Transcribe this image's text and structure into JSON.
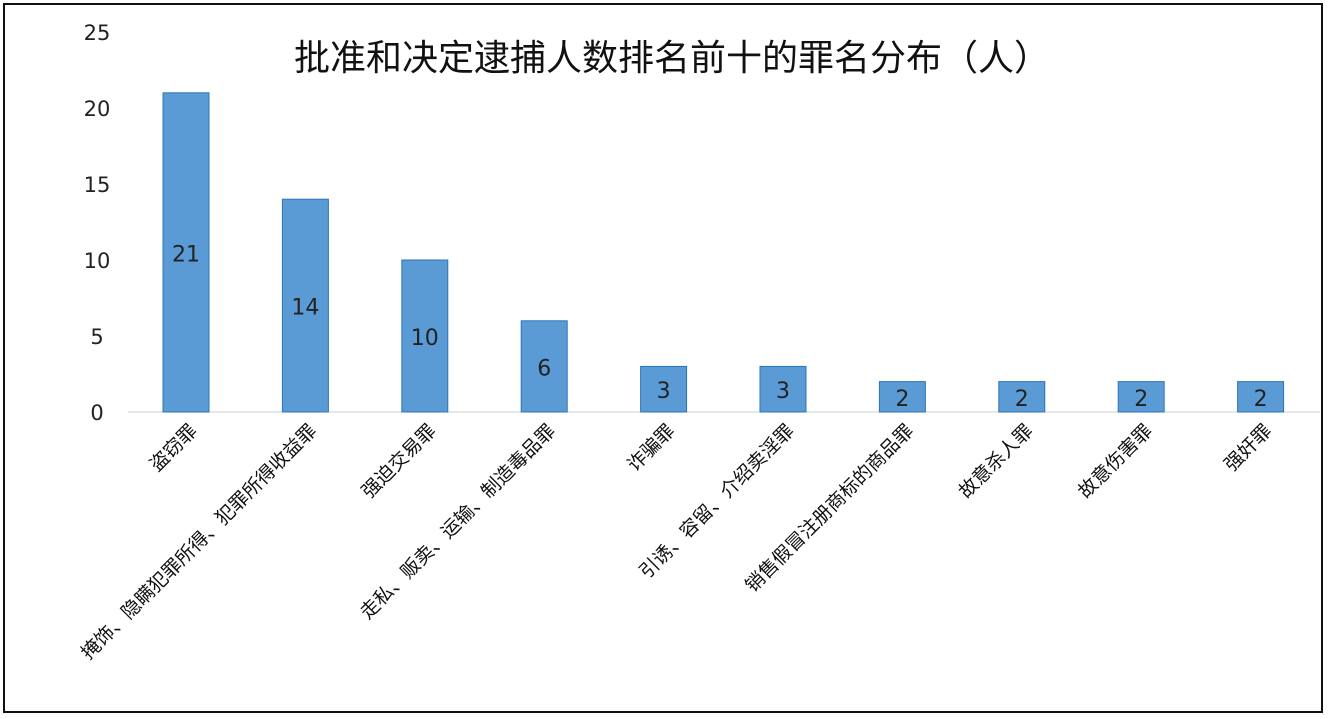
{
  "chart_data": {
    "type": "bar",
    "title": "批准和决定逮捕人数排名前十的罪名分布（人）",
    "categories": [
      "盗窃罪",
      "掩饰、隐瞒犯罪所得、犯罪所得收益罪",
      "强迫交易罪",
      "走私、贩卖、运输、制造毒品罪",
      "诈骗罪",
      "引诱、容留、介绍卖淫罪",
      "销售假冒注册商标的商品罪",
      "故意杀人罪",
      "故意伤害罪",
      "强奸罪"
    ],
    "values": [
      21,
      14,
      10,
      6,
      3,
      3,
      2,
      2,
      2,
      2
    ],
    "data_labels": [
      "21",
      "14",
      "10",
      "6",
      "3",
      "3",
      "2",
      "2",
      "2",
      "2"
    ],
    "xlabel": "",
    "ylabel": "",
    "ylim": [
      0,
      25
    ],
    "yticks": [
      "0",
      "5",
      "10",
      "15",
      "20",
      "25"
    ],
    "grid": false,
    "legend": "none",
    "bar_color": "#5B9BD5",
    "bar_edge_color": "#2E75B6"
  }
}
